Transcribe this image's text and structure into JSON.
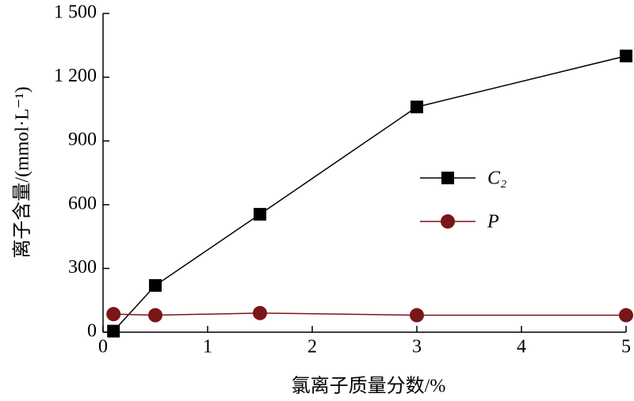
{
  "chart_data": {
    "type": "line",
    "xlabel": "氯离子质量分数/%",
    "ylabel": "离子含量/(mmol·L⁻¹)",
    "series": [
      {
        "name": "C₂",
        "color": "#000000",
        "marker": "square",
        "x": [
          0.1,
          0.5,
          1.5,
          3,
          5
        ],
        "values": [
          5,
          220,
          555,
          1060,
          1300
        ]
      },
      {
        "name": "P",
        "color": "#7a1518",
        "marker": "circle",
        "x": [
          0.1,
          0.5,
          1.5,
          3,
          5
        ],
        "values": [
          85,
          80,
          90,
          80,
          80
        ]
      }
    ],
    "xlim": [
      0,
      5
    ],
    "xticks": [
      0,
      1,
      2,
      3,
      4,
      5
    ],
    "ylim": [
      0,
      1500
    ],
    "yticks": [
      0,
      300,
      600,
      900,
      {
        "value": 1200,
        "label": "1 200"
      },
      {
        "value": 1500,
        "label": "1 500"
      }
    ],
    "legend": "center right"
  }
}
